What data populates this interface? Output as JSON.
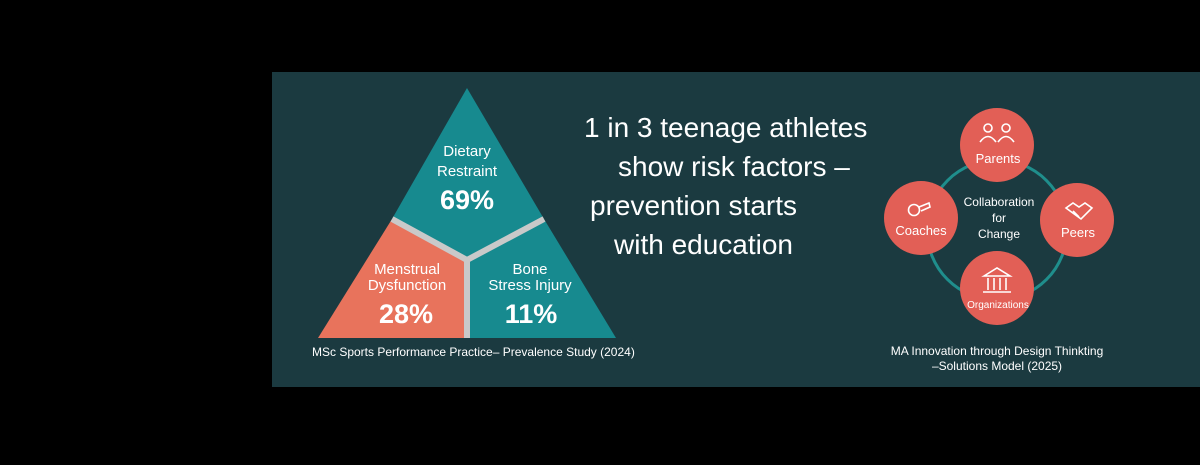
{
  "triangle": {
    "segments": [
      {
        "label_lines": [
          "Dietary",
          "Restraint"
        ],
        "value": "69%",
        "color": "#178a8f"
      },
      {
        "label_lines": [
          "Menstrual",
          "Dysfunction"
        ],
        "value": "28%",
        "color": "#e8735c"
      },
      {
        "label_lines": [
          "Bone",
          "Stress Injury"
        ],
        "value": "11%",
        "color": "#178a8f"
      }
    ],
    "caption": "MSc Sports Performance Practice– Prevalence Study (2024)"
  },
  "headline": {
    "lines": [
      "1 in 3 teenage athletes",
      "show risk factors –",
      "prevention starts",
      "with education"
    ]
  },
  "cycle": {
    "center_lines": [
      "Collaboration",
      "for",
      "Change"
    ],
    "node_color": "#e25f56",
    "nodes": [
      {
        "label": "Parents",
        "icon": "people-icon"
      },
      {
        "label": "Coaches",
        "icon": "whistle-icon"
      },
      {
        "label": "Peers",
        "icon": "handshake-icon"
      },
      {
        "label": "Organizations",
        "icon": "institution-icon"
      }
    ],
    "caption_lines": [
      "MA Innovation through Design Thinkting",
      "–Solutions Model (2025)"
    ]
  }
}
